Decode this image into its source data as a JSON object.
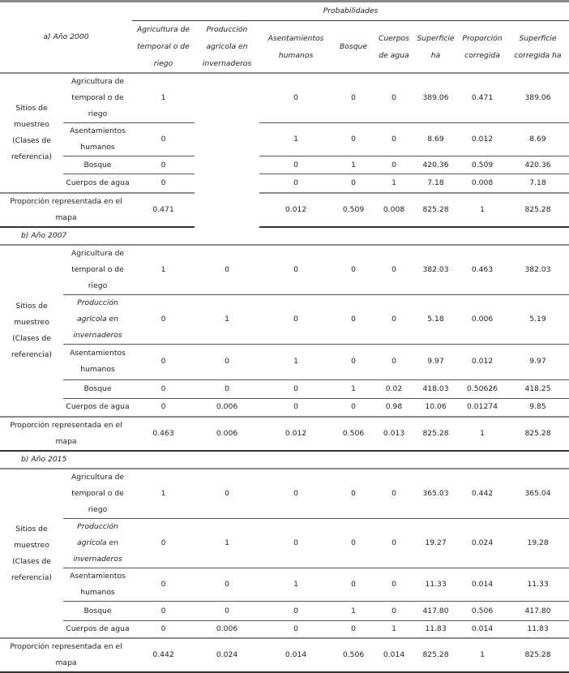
{
  "header": {
    "first_section_label": "a) Año 2000",
    "group_label": "Probabilidades",
    "columns": [
      "Agricultura de temporal o de riego",
      "Producción agrícola en invernaderos",
      "Asentamientos humanos",
      "Bosque",
      "Cuerpos de agua",
      "Superficie ha",
      "Proporción corregida",
      "Superficie corregida ha"
    ]
  },
  "sections": [
    {
      "label": "a) Año 2000",
      "group_label": "Sitios de muestreo (Clases de referencia)",
      "rows": [
        {
          "class": "Agricultura de temporal o de riego",
          "italic": false,
          "values": [
            "1",
            "",
            "0",
            "0",
            "0",
            "389.06",
            "0.471",
            "389.06"
          ]
        },
        {
          "class": "Asentamientos humanos",
          "italic": false,
          "values": [
            "0",
            "",
            "1",
            "0",
            "0",
            "8.69",
            "0.012",
            "8.69"
          ]
        },
        {
          "class": "Bosque",
          "italic": false,
          "values": [
            "0",
            "",
            "0",
            "1",
            "0",
            "420.36",
            "0.509",
            "420.36"
          ]
        },
        {
          "class": "Cuerpos de agua",
          "italic": false,
          "values": [
            "0",
            "",
            "0",
            "0",
            "1",
            "7.18",
            "0.008",
            "7.18"
          ]
        }
      ],
      "proportion": {
        "label": "Proporción representada en el mapa",
        "values": [
          "0.471",
          "",
          "0.012",
          "0.509",
          "0.008",
          "825.28",
          "1",
          "825.28"
        ]
      }
    },
    {
      "label": "b) Año 2007",
      "group_label": "Sitios de muestreo (Clases de referencia)",
      "rows": [
        {
          "class": "Agricultura de temporal o de riego",
          "italic": false,
          "values": [
            "1",
            "0",
            "0",
            "0",
            "0",
            "382.03",
            "0.463",
            "382.03"
          ]
        },
        {
          "class": "Producción agrícola en invernaderos",
          "italic": true,
          "values": [
            "0",
            "1",
            "0",
            "0",
            "0",
            "5.18",
            "0.006",
            "5.19"
          ]
        },
        {
          "class": "Asentamientos humanos",
          "italic": false,
          "values": [
            "0",
            "0",
            "1",
            "0",
            "0",
            "9.97",
            "0.012",
            "9.97"
          ]
        },
        {
          "class": "Bosque",
          "italic": false,
          "values": [
            "0",
            "0",
            "0",
            "1",
            "0.02",
            "418.03",
            "0.50626",
            "418.25"
          ]
        },
        {
          "class": "Cuerpos de agua",
          "italic": false,
          "values": [
            "0",
            "0.006",
            "0",
            "0",
            "0.98",
            "10.06",
            "0.01274",
            "9.85"
          ]
        }
      ],
      "proportion": {
        "label": "Proporción representada en el mapa",
        "values": [
          "0.463",
          "0.006",
          "0.012",
          "0.506",
          "0.013",
          "825.28",
          "1",
          "825.28"
        ]
      }
    },
    {
      "label": "b) Año 2015",
      "group_label": "Sitios de muestreo (Clases de referencia)",
      "rows": [
        {
          "class": "Agricultura de temporal o de riego",
          "italic": false,
          "values": [
            "1",
            "0",
            "0",
            "0",
            "0",
            "365.03",
            "0.442",
            "365.04"
          ]
        },
        {
          "class": "Producción agrícola en invernaderos",
          "italic": true,
          "values": [
            "0",
            "1",
            "0",
            "0",
            "0",
            "19.27",
            "0.024",
            "19.28"
          ]
        },
        {
          "class": "Asentamientos humanos",
          "italic": false,
          "values": [
            "0",
            "0",
            "1",
            "0",
            "0",
            "11.33",
            "0.014",
            "11.33"
          ]
        },
        {
          "class": "Bosque",
          "italic": false,
          "values": [
            "0",
            "0",
            "0",
            "1",
            "0",
            "417.80",
            "0.506",
            "417.80"
          ]
        },
        {
          "class": "Cuerpos de agua",
          "italic": false,
          "values": [
            "0",
            "0.006",
            "0",
            "0",
            "1",
            "11.83",
            "0.014",
            "11.83"
          ]
        }
      ],
      "proportion": {
        "label": "Proporción representada en el mapa",
        "values": [
          "0.442",
          "0.024",
          "0.014",
          "0.506",
          "0.014",
          "825.28",
          "1",
          "825.28"
        ]
      }
    }
  ]
}
